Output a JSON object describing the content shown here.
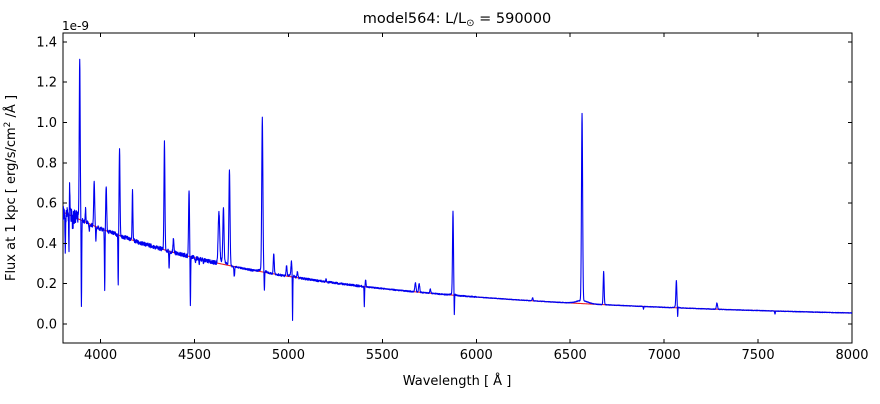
{
  "figure": {
    "title": {
      "prefix": "model564: L/L",
      "sub": "⊙",
      "suffix": " = 590000"
    },
    "xlabel": "Wavelength [ Å ]",
    "ylabel": {
      "prefix": "Flux at 1 kpc [ erg/s/cm",
      "sup": "2",
      "suffix": " /Å ]"
    },
    "offset_text": "1e-9",
    "xticks": [
      "4000",
      "4500",
      "5000",
      "5500",
      "6000",
      "6500",
      "7000",
      "7500",
      "8000"
    ],
    "yticks": [
      "0.0",
      "0.2",
      "0.4",
      "0.6",
      "0.8",
      "1.0",
      "1.2",
      "1.4"
    ]
  },
  "chart_data": {
    "type": "line",
    "title": "model564: L/L⊙ = 590000",
    "xlabel": "Wavelength [ Å ]",
    "ylabel": "Flux at 1 kpc [ erg/s/cm² /Å ]",
    "y_unit_scale": "1e-9",
    "xlim": [
      3800,
      8000
    ],
    "ylim": [
      -0.094,
      1.444
    ],
    "xtick_values": [
      4000,
      4500,
      5000,
      5500,
      6000,
      6500,
      7000,
      7500,
      8000
    ],
    "ytick_values": [
      0.0,
      0.2,
      0.4,
      0.6,
      0.8,
      1.0,
      1.2,
      1.4
    ],
    "grid": false,
    "legend": false,
    "series": [
      {
        "name": "observed spectrum",
        "color": "#0000f0"
      },
      {
        "name": "model continuum fit",
        "color": "#ee2020"
      }
    ],
    "continuum_points": [
      [
        3800,
        0.555
      ],
      [
        4000,
        0.473
      ],
      [
        4200,
        0.4065
      ],
      [
        4400,
        0.3518
      ],
      [
        4600,
        0.3064
      ],
      [
        4800,
        0.2684
      ],
      [
        5000,
        0.2364
      ],
      [
        5200,
        0.2092
      ],
      [
        5400,
        0.186
      ],
      [
        5600,
        0.1662
      ],
      [
        5800,
        0.149
      ],
      [
        6000,
        0.1341
      ],
      [
        6200,
        0.1211
      ],
      [
        6400,
        0.1097
      ],
      [
        6600,
        0.0997
      ],
      [
        6800,
        0.0909
      ],
      [
        7000,
        0.083
      ],
      [
        7200,
        0.0761
      ],
      [
        7400,
        0.0698
      ],
      [
        7600,
        0.0643
      ],
      [
        7800,
        0.0593
      ],
      [
        8000,
        0.0548
      ]
    ],
    "emission_lines": [
      {
        "wavelength": 3835,
        "peak": 0.7,
        "sigma": 2
      },
      {
        "wavelength": 3889,
        "peak": 1.31,
        "sigma": 2.5
      },
      {
        "wavelength": 3920,
        "peak": 0.57,
        "sigma": 2
      },
      {
        "wavelength": 3966,
        "peak": 0.71,
        "sigma": 2.5
      },
      {
        "wavelength": 4030,
        "peak": 0.69,
        "sigma": 2.5
      },
      {
        "wavelength": 4101,
        "peak": 0.86,
        "sigma": 2.5
      },
      {
        "wavelength": 4170,
        "peak": 0.66,
        "sigma": 2
      },
      {
        "wavelength": 4340,
        "peak": 0.9,
        "sigma": 2.5
      },
      {
        "wavelength": 4388,
        "peak": 0.42,
        "sigma": 2.5
      },
      {
        "wavelength": 4471,
        "peak": 0.66,
        "sigma": 2.5
      },
      {
        "wavelength": 4630,
        "peak": 0.55,
        "sigma": 4
      },
      {
        "wavelength": 4654,
        "peak": 0.56,
        "sigma": 3
      },
      {
        "wavelength": 4686,
        "peak": 0.76,
        "sigma": 3
      },
      {
        "wavelength": 4861,
        "peak": 1.01,
        "sigma": 3
      },
      {
        "wavelength": 4922,
        "peak": 0.35,
        "sigma": 2.5
      },
      {
        "wavelength": 4990,
        "peak": 0.29,
        "sigma": 2.5
      },
      {
        "wavelength": 5016,
        "peak": 0.3,
        "sigma": 2.5
      },
      {
        "wavelength": 5048,
        "peak": 0.26,
        "sigma": 2.5
      },
      {
        "wavelength": 5200,
        "peak": 0.225,
        "sigma": 2
      },
      {
        "wavelength": 5411,
        "peak": 0.22,
        "sigma": 2
      },
      {
        "wavelength": 5676,
        "peak": 0.205,
        "sigma": 3
      },
      {
        "wavelength": 5696,
        "peak": 0.2,
        "sigma": 3
      },
      {
        "wavelength": 5755,
        "peak": 0.175,
        "sigma": 2.5
      },
      {
        "wavelength": 5876,
        "peak": 0.55,
        "sigma": 2.5
      },
      {
        "wavelength": 6300,
        "peak": 0.13,
        "sigma": 2.5
      },
      {
        "wavelength": 6563,
        "peak": 1.03,
        "sigma": 3
      },
      {
        "wavelength": 6678,
        "peak": 0.26,
        "sigma": 2.5
      },
      {
        "wavelength": 7065,
        "peak": 0.21,
        "sigma": 2.5
      },
      {
        "wavelength": 7281,
        "peak": 0.105,
        "sigma": 3
      }
    ],
    "absorption_dips": [
      {
        "wavelength": 3812,
        "min": 0.34,
        "sigma": 1.5
      },
      {
        "wavelength": 3832,
        "min": 0.33,
        "sigma": 1.5
      },
      {
        "wavelength": 3852,
        "min": 0.47,
        "sigma": 1.5
      },
      {
        "wavelength": 3898,
        "min": 0.07,
        "sigma": 1.5
      },
      {
        "wavelength": 3940,
        "min": 0.46,
        "sigma": 1.5
      },
      {
        "wavelength": 3975,
        "min": 0.42,
        "sigma": 1.5
      },
      {
        "wavelength": 4022,
        "min": 0.17,
        "sigma": 1.5
      },
      {
        "wavelength": 4094,
        "min": 0.19,
        "sigma": 1.5
      },
      {
        "wavelength": 4365,
        "min": 0.27,
        "sigma": 1.5
      },
      {
        "wavelength": 4478,
        "min": 0.09,
        "sigma": 1.5
      },
      {
        "wavelength": 4505,
        "min": 0.3,
        "sigma": 2
      },
      {
        "wavelength": 4525,
        "min": 0.295,
        "sigma": 2
      },
      {
        "wavelength": 4548,
        "min": 0.3,
        "sigma": 2
      },
      {
        "wavelength": 4712,
        "min": 0.235,
        "sigma": 2
      },
      {
        "wavelength": 4872,
        "min": 0.16,
        "sigma": 1.5
      },
      {
        "wavelength": 5022,
        "min": 0.01,
        "sigma": 1.2
      },
      {
        "wavelength": 5404,
        "min": 0.085,
        "sigma": 1.2
      },
      {
        "wavelength": 5883,
        "min": 0.03,
        "sigma": 1.2
      },
      {
        "wavelength": 6890,
        "min": 0.075,
        "sigma": 1.5
      },
      {
        "wavelength": 7072,
        "min": 0.03,
        "sigma": 1.2
      },
      {
        "wavelength": 7590,
        "min": 0.048,
        "sigma": 1.5
      }
    ],
    "broad_components": [
      {
        "wavelength": 3889,
        "excess": 0.01,
        "sigma": 12
      },
      {
        "wavelength": 4650,
        "excess": 0.018,
        "sigma": 15
      },
      {
        "wavelength": 4861,
        "excess": 0.012,
        "sigma": 15
      },
      {
        "wavelength": 5016,
        "excess": 0.01,
        "sigma": 12
      },
      {
        "wavelength": 5876,
        "excess": 0.008,
        "sigma": 10
      },
      {
        "wavelength": 6563,
        "excess": 0.015,
        "sigma": 30
      },
      {
        "wavelength": 7065,
        "excess": 0.006,
        "sigma": 10
      }
    ],
    "noise_profile": [
      {
        "up_to": 3880,
        "amplitude": 0.038
      },
      {
        "up_to": 4650,
        "amplitude": 0.01
      },
      {
        "up_to": 5400,
        "amplitude": 0.005
      },
      {
        "up_to": 6000,
        "amplitude": 0.003
      },
      {
        "up_to": 8000,
        "amplitude": 0.0016
      }
    ]
  }
}
